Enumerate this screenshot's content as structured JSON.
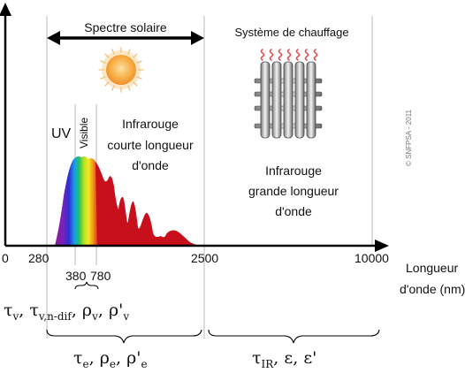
{
  "header": {
    "solar_spectrum": "Spectre solaire",
    "heating_system": "Système de chauffage"
  },
  "bands": {
    "uv": "UV",
    "visible": "Visible",
    "ir_short": [
      "Infrarouge",
      "courte longueur",
      "d'onde"
    ],
    "ir_long": [
      "Infrarouge",
      "grande longueur",
      "d'onde"
    ]
  },
  "axis": {
    "ticks": [
      "0",
      "280",
      "2500",
      "10000"
    ],
    "visible_ticks": [
      "380",
      "780"
    ],
    "label": [
      "Longueur",
      "d'onde (nm)"
    ]
  },
  "properties": {
    "visible_group": {
      "parts": [
        [
          "τ",
          "v"
        ],
        [
          "τ",
          "v,n-dif"
        ],
        [
          "ρ",
          "v"
        ],
        [
          "ρ'",
          "v"
        ]
      ]
    },
    "energy_group": {
      "parts": [
        [
          "τ",
          "e"
        ],
        [
          "ρ",
          "e"
        ],
        [
          "ρ'",
          "e"
        ]
      ]
    },
    "ir_group": {
      "parts": [
        [
          "τ",
          "IR"
        ],
        [
          "ε",
          ""
        ],
        [
          "ε'",
          ""
        ]
      ]
    }
  },
  "copyright": "© SNFPSA - 2011",
  "colors": {
    "spectrum_ir": "#c8101c",
    "sun_core": "#f7a43a",
    "sun_rays": "#f5c07a",
    "heat_waves": "#e05050"
  },
  "icons": [
    "sun-icon",
    "radiator-icon",
    "heat-wave-icon"
  ]
}
